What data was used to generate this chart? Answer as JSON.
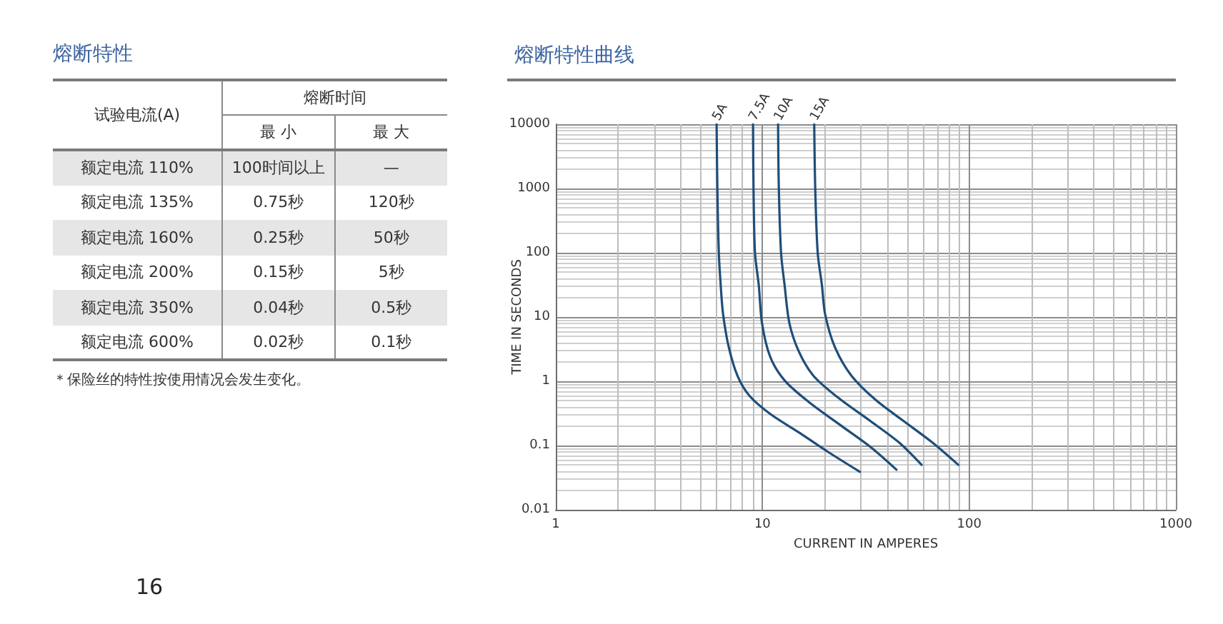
{
  "chart_data": [
    {
      "type": "other",
      "title": "熔断特性",
      "ylabel": "试验电流(A)",
      "legend_title": "熔断时间",
      "categories": [
        "额定电流 110%",
        "额定电流 135%",
        "额定电流 160%",
        "额定电流 200%",
        "额定电流 350%",
        "额定电流 600%"
      ],
      "series": [
        {
          "name": "最 小",
          "colors": [
            "#e6e6e6",
            "#ffffff",
            "#e6e6e6",
            "#ffffff",
            "#e6e6e6",
            "#ffffff"
          ],
          "values": [
            100,
            0.75,
            0.25,
            0.15,
            0.04,
            0.02
          ],
          "value_labels": [
            "100时间以上",
            "0.75秒",
            "0.25秒",
            "0.15秒",
            "0.04秒",
            "0.02秒"
          ]
        },
        {
          "name": "最 大",
          "colors": [
            "#e6e6e6",
            "#ffffff",
            "#e6e6e6",
            "#ffffff",
            "#e6e6e6",
            "#ffffff"
          ],
          "values": [
            null,
            120,
            50,
            5,
            0.5,
            0.1
          ],
          "value_labels": [
            "—",
            "120秒",
            "50秒",
            "5秒",
            "0.5秒",
            "0.1秒"
          ]
        }
      ],
      "annotations": [
        "＊保险丝的特性按使用情况会发生变化。",
        "16"
      ]
    },
    {
      "type": "line",
      "title": "熔断特性曲线",
      "xlabel": "CURRENT IN AMPERES",
      "ylabel": "TIME IN SECONDS",
      "log": "xy",
      "grid": true,
      "marker": "none",
      "line_style": "solid",
      "xlim": [
        1,
        1000
      ],
      "xticks": [
        1,
        {
          "value": 2,
          "label": null
        },
        {
          "value": 3,
          "label": null
        },
        {
          "value": 4,
          "label": null
        },
        {
          "value": 5,
          "label": null
        },
        {
          "value": 6,
          "label": null
        },
        {
          "value": 7,
          "label": null
        },
        {
          "value": 8,
          "label": null
        },
        {
          "value": 9,
          "label": null
        },
        10,
        {
          "value": 20,
          "label": null
        },
        {
          "value": 30,
          "label": null
        },
        {
          "value": 40,
          "label": null
        },
        {
          "value": 50,
          "label": null
        },
        {
          "value": 60,
          "label": null
        },
        {
          "value": 70,
          "label": null
        },
        {
          "value": 80,
          "label": null
        },
        {
          "value": 90,
          "label": null
        },
        100,
        {
          "value": 200,
          "label": null
        },
        {
          "value": 300,
          "label": null
        },
        {
          "value": 400,
          "label": null
        },
        {
          "value": 500,
          "label": null
        },
        {
          "value": 600,
          "label": null
        },
        {
          "value": 700,
          "label": null
        },
        {
          "value": 800,
          "label": null
        },
        {
          "value": 900,
          "label": null
        },
        1000
      ],
      "ylim": [
        0.01,
        10000
      ],
      "yticks": [
        0.01,
        {
          "value": 0.02,
          "label": null
        },
        {
          "value": 0.03,
          "label": null
        },
        {
          "value": 0.04,
          "label": null
        },
        {
          "value": 0.05,
          "label": null
        },
        {
          "value": 0.06,
          "label": null
        },
        {
          "value": 0.07,
          "label": null
        },
        {
          "value": 0.08,
          "label": null
        },
        {
          "value": 0.09,
          "label": null
        },
        0.1,
        {
          "value": 0.2,
          "label": null
        },
        {
          "value": 0.3,
          "label": null
        },
        {
          "value": 0.4,
          "label": null
        },
        {
          "value": 0.5,
          "label": null
        },
        {
          "value": 0.6,
          "label": null
        },
        {
          "value": 0.7,
          "label": null
        },
        {
          "value": 0.8,
          "label": null
        },
        {
          "value": 0.9,
          "label": null
        },
        1,
        {
          "value": 2,
          "label": null
        },
        {
          "value": 3,
          "label": null
        },
        {
          "value": 4,
          "label": null
        },
        {
          "value": 5,
          "label": null
        },
        {
          "value": 6,
          "label": null
        },
        {
          "value": 7,
          "label": null
        },
        {
          "value": 8,
          "label": null
        },
        {
          "value": 9,
          "label": null
        },
        10,
        {
          "value": 20,
          "label": null
        },
        {
          "value": 30,
          "label": null
        },
        {
          "value": 40,
          "label": null
        },
        {
          "value": 50,
          "label": null
        },
        {
          "value": 60,
          "label": null
        },
        {
          "value": 70,
          "label": null
        },
        {
          "value": 80,
          "label": null
        },
        {
          "value": 90,
          "label": null
        },
        100,
        {
          "value": 200,
          "label": null
        },
        {
          "value": 300,
          "label": null
        },
        {
          "value": 400,
          "label": null
        },
        {
          "value": 500,
          "label": null
        },
        {
          "value": 600,
          "label": null
        },
        {
          "value": 700,
          "label": null
        },
        {
          "value": 800,
          "label": null
        },
        {
          "value": 900,
          "label": null
        },
        1000,
        {
          "value": 2000,
          "label": null
        },
        {
          "value": 3000,
          "label": null
        },
        {
          "value": 4000,
          "label": null
        },
        {
          "value": 5000,
          "label": null
        },
        {
          "value": 6000,
          "label": null
        },
        {
          "value": 7000,
          "label": null
        },
        {
          "value": 8000,
          "label": null
        },
        {
          "value": 9000,
          "label": null
        },
        10000
      ],
      "series": [
        {
          "name": "5A",
          "color": "#1f4e79",
          "x": [
            6.0,
            6.05,
            6.15,
            6.28,
            6.45,
            6.87,
            7.56,
            8.63,
            10.9,
            15,
            20.7,
            29.6
          ],
          "values": [
            10000,
            1000,
            100,
            31,
            11,
            3.4,
            1.23,
            0.6,
            0.31,
            0.16,
            0.08,
            0.039
          ]
        },
        {
          "name": "7.5A",
          "color": "#1f4e79",
          "x": [
            9.0,
            9.05,
            9.2,
            9.6,
            9.95,
            10.9,
            12.8,
            16.7,
            24.2,
            33.3,
            44.5
          ],
          "values": [
            10000,
            1000,
            100,
            31,
            8,
            2.4,
            1.03,
            0.48,
            0.2,
            0.095,
            0.042
          ]
        },
        {
          "name": "10A",
          "color": "#1f4e79",
          "x": [
            11.9,
            12.0,
            12.3,
            12.8,
            13.5,
            15,
            17.6,
            23,
            33.3,
            45.7,
            58.9
          ],
          "values": [
            10000,
            1000,
            100,
            31,
            8,
            2.9,
            1.23,
            0.57,
            0.24,
            0.112,
            0.05
          ]
        },
        {
          "name": "15A",
          "color": "#1f4e79",
          "x": [
            17.8,
            18.0,
            18.5,
            19.4,
            20.1,
            22.4,
            26.9,
            35.1,
            48.2,
            66.2,
            88.6
          ],
          "values": [
            10000,
            1000,
            100,
            31,
            11,
            3.4,
            1.23,
            0.52,
            0.24,
            0.112,
            0.05
          ]
        }
      ]
    }
  ]
}
